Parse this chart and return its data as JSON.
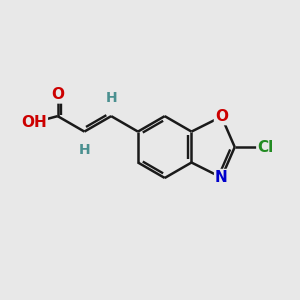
{
  "bg_color": "#e8e8e8",
  "bond_color": "#1a1a1a",
  "bond_width": 1.8,
  "atom_colors": {
    "O": "#cc0000",
    "N": "#0000cc",
    "Cl": "#228B22",
    "H": "#4a9090",
    "C": "#1a1a1a"
  },
  "font_size_atoms": 11,
  "font_size_H": 10,
  "font_size_Cl": 11
}
